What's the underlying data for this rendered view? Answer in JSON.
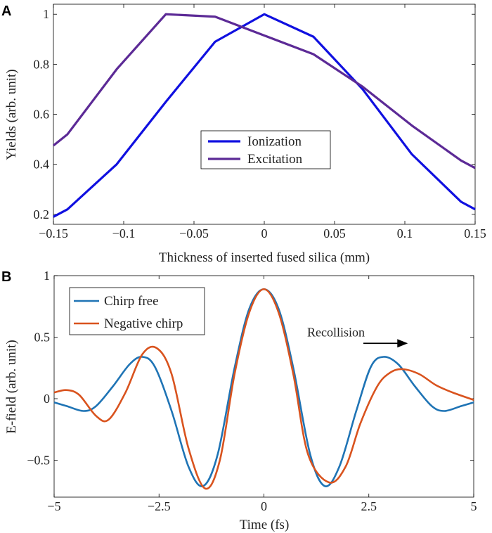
{
  "panels": [
    {
      "letter": "A"
    },
    {
      "letter": "B"
    }
  ],
  "chart_data": [
    {
      "type": "line",
      "xlabel": "Thickness of inserted fused silica (mm)",
      "ylabel": "Yields (arb. unit)",
      "xlim": [
        -0.15,
        0.15
      ],
      "ylim": [
        0.16,
        1.04
      ],
      "xticks": [
        -0.15,
        -0.1,
        -0.05,
        0,
        0.05,
        0.1,
        0.15
      ],
      "xtick_labels": [
        "−0.15",
        "−0.1",
        "−0.05",
        "0",
        "0.05",
        "0.1",
        "0.15"
      ],
      "yticks": [
        0.2,
        0.4,
        0.6,
        0.8,
        1.0
      ],
      "ytick_labels": [
        "0.2",
        "0.4",
        "0.6",
        "0.8",
        "1"
      ],
      "grid": false,
      "legend_position": "center-bottom",
      "series": [
        {
          "name": "Ionization",
          "color": "#1010e0",
          "x": [
            -0.15,
            -0.14,
            -0.105,
            -0.07,
            -0.035,
            0,
            0.035,
            0.07,
            0.105,
            0.14,
            0.15
          ],
          "y": [
            0.19,
            0.22,
            0.4,
            0.65,
            0.89,
            1.0,
            0.91,
            0.7,
            0.44,
            0.25,
            0.22
          ]
        },
        {
          "name": "Excitation",
          "color": "#5c2a96",
          "x": [
            -0.15,
            -0.14,
            -0.105,
            -0.07,
            -0.035,
            0,
            0.035,
            0.07,
            0.105,
            0.14,
            0.15
          ],
          "y": [
            0.475,
            0.52,
            0.78,
            1.0,
            0.99,
            0.915,
            0.84,
            0.71,
            0.555,
            0.415,
            0.385
          ]
        }
      ]
    },
    {
      "type": "line",
      "xlabel": "Time (fs)",
      "ylabel": "E-field (arb. unit)",
      "xlim": [
        -5,
        5
      ],
      "ylim": [
        -0.8,
        1.0
      ],
      "xticks": [
        -5,
        -2.5,
        0,
        2.5,
        5
      ],
      "xtick_labels": [
        "−5",
        "−2.5",
        "0",
        "2.5",
        "5"
      ],
      "yticks": [
        -0.5,
        0,
        0.5,
        1
      ],
      "ytick_labels": [
        "−0.5",
        "0",
        "0.5",
        "1"
      ],
      "grid": false,
      "legend_position": "top-left",
      "annotations": [
        {
          "text": "Recollision",
          "x": 1.03,
          "y": 0.54,
          "arrow_to": [
            3.43,
            0.45
          ],
          "arrow_from": [
            2.37,
            0.45
          ]
        }
      ],
      "series": [
        {
          "name": "Chirp free",
          "color": "#1f74b5",
          "x": [
            -5,
            -4.7,
            -4.3,
            -4.0,
            -3.6,
            -3.2,
            -2.9,
            -2.6,
            -2.2,
            -1.8,
            -1.45,
            -1.1,
            -0.7,
            -0.35,
            0,
            0.35,
            0.7,
            1.1,
            1.45,
            1.8,
            2.2,
            2.55,
            2.85,
            3.2,
            3.6,
            4.0,
            4.3,
            4.7,
            5
          ],
          "y": [
            -0.03,
            -0.06,
            -0.1,
            -0.06,
            0.1,
            0.28,
            0.34,
            0.26,
            -0.1,
            -0.55,
            -0.71,
            -0.45,
            0.25,
            0.73,
            0.89,
            0.73,
            0.25,
            -0.45,
            -0.71,
            -0.55,
            -0.1,
            0.26,
            0.34,
            0.28,
            0.1,
            -0.06,
            -0.1,
            -0.06,
            -0.03
          ]
        },
        {
          "name": "Negative chirp",
          "color": "#d9531e",
          "x": [
            -5,
            -4.7,
            -4.4,
            -4.0,
            -3.7,
            -3.3,
            -2.9,
            -2.55,
            -2.2,
            -1.8,
            -1.4,
            -1.05,
            -0.7,
            -0.35,
            0,
            0.35,
            0.7,
            1.05,
            1.55,
            1.95,
            2.3,
            2.7,
            3.0,
            3.3,
            3.7,
            4.1,
            4.5,
            5
          ],
          "y": [
            0.05,
            0.07,
            0.03,
            -0.14,
            -0.17,
            0.05,
            0.36,
            0.41,
            0.2,
            -0.4,
            -0.73,
            -0.5,
            0.2,
            0.7,
            0.89,
            0.7,
            0.2,
            -0.45,
            -0.68,
            -0.55,
            -0.2,
            0.1,
            0.21,
            0.24,
            0.2,
            0.11,
            0.05,
            -0.01
          ]
        }
      ]
    }
  ]
}
